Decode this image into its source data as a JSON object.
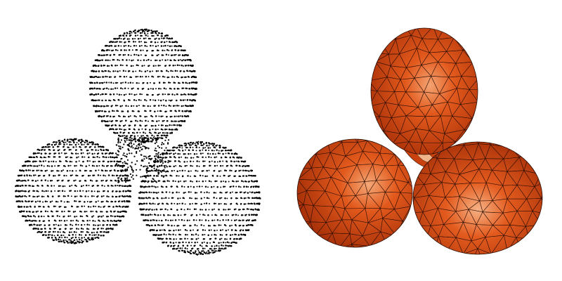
{
  "panels": [
    {
      "name": "point-cloud",
      "style": "points",
      "point_color": "#000000"
    },
    {
      "name": "triangle-mesh",
      "style": "shaded-mesh",
      "base_color": "#d9460f",
      "highlight_color": "#f2a06a",
      "edge_color": "#2a0d04"
    }
  ]
}
